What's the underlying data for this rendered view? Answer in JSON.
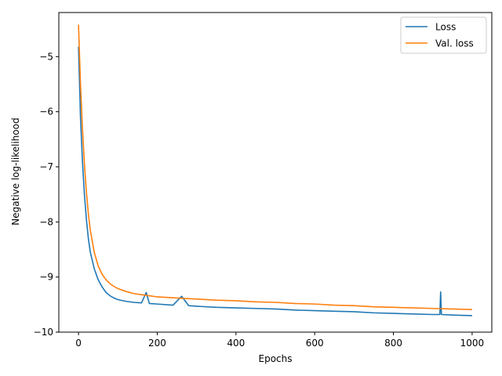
{
  "chart_data": {
    "type": "line",
    "title": "",
    "xlabel": "Epochs",
    "ylabel": "Negative log-likelihood",
    "xlim": [
      -50,
      1050
    ],
    "ylim": [
      -10,
      -4.2
    ],
    "xticks": [
      0,
      200,
      400,
      600,
      800,
      1000
    ],
    "xtick_labels": [
      "0",
      "200",
      "400",
      "600",
      "800",
      "1000"
    ],
    "yticks": [
      -10,
      -9,
      -8,
      -7,
      -6,
      -5
    ],
    "ytick_labels": [
      "−10",
      "−9",
      "−8",
      "−7",
      "−6",
      "−5"
    ],
    "grid": false,
    "legend_position": "top-right",
    "series": [
      {
        "name": "Loss",
        "color": "#1f77b4",
        "x": [
          0,
          5,
          10,
          15,
          20,
          25,
          30,
          40,
          50,
          60,
          70,
          80,
          90,
          100,
          120,
          140,
          160,
          172,
          180,
          200,
          240,
          262,
          280,
          300,
          350,
          400,
          450,
          500,
          550,
          600,
          650,
          700,
          750,
          800,
          850,
          900,
          918,
          920,
          922,
          950,
          1000
        ],
        "y": [
          -4.82,
          -6.1,
          -6.9,
          -7.5,
          -7.95,
          -8.3,
          -8.55,
          -8.85,
          -9.05,
          -9.18,
          -9.28,
          -9.34,
          -9.38,
          -9.41,
          -9.44,
          -9.46,
          -9.47,
          -9.28,
          -9.48,
          -9.49,
          -9.51,
          -9.35,
          -9.52,
          -9.53,
          -9.55,
          -9.56,
          -9.57,
          -9.58,
          -9.6,
          -9.61,
          -9.62,
          -9.63,
          -9.65,
          -9.66,
          -9.67,
          -9.68,
          -9.68,
          -9.27,
          -9.68,
          -9.69,
          -9.7
        ]
      },
      {
        "name": "Val. loss",
        "color": "#ff7f0e",
        "x": [
          0,
          5,
          10,
          15,
          20,
          25,
          30,
          40,
          50,
          60,
          70,
          80,
          90,
          100,
          120,
          140,
          160,
          180,
          200,
          250,
          300,
          350,
          400,
          450,
          500,
          550,
          600,
          650,
          700,
          750,
          800,
          850,
          900,
          950,
          1000
        ],
        "y": [
          -4.42,
          -5.5,
          -6.3,
          -6.95,
          -7.45,
          -7.85,
          -8.15,
          -8.55,
          -8.8,
          -8.95,
          -9.05,
          -9.12,
          -9.17,
          -9.21,
          -9.26,
          -9.3,
          -9.32,
          -9.34,
          -9.36,
          -9.38,
          -9.4,
          -9.42,
          -9.43,
          -9.45,
          -9.46,
          -9.48,
          -9.49,
          -9.51,
          -9.52,
          -9.54,
          -9.55,
          -9.56,
          -9.57,
          -9.58,
          -9.59
        ]
      }
    ]
  }
}
